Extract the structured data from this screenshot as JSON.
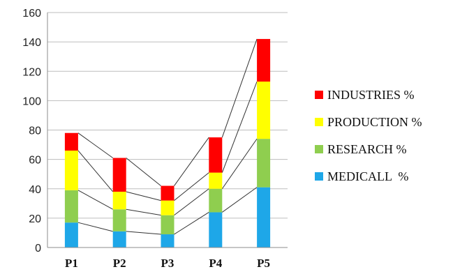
{
  "chart_data": {
    "type": "bar",
    "stacked": true,
    "series_lines": true,
    "categories": [
      "P1",
      "P2",
      "P3",
      "P4",
      "P5"
    ],
    "series": [
      {
        "name": "MEDICALL  %",
        "color": "#1ea7e8",
        "values": [
          17,
          11,
          9,
          24,
          41
        ]
      },
      {
        "name": "RESEARCH %",
        "color": "#8fce4f",
        "values": [
          22,
          15,
          13,
          16,
          33
        ]
      },
      {
        "name": "PRODUCTION %",
        "color": "#ffff00",
        "values": [
          27,
          12,
          10,
          11,
          39
        ]
      },
      {
        "name": "INDUSTRIES %",
        "color": "#ff0000",
        "values": [
          12,
          23,
          10,
          24,
          29
        ]
      }
    ],
    "ylim": [
      0,
      160
    ],
    "yticks": [
      0,
      20,
      40,
      60,
      80,
      100,
      120,
      140,
      160
    ],
    "grid": true,
    "legend_position": "right",
    "legend_order": [
      "INDUSTRIES %",
      "PRODUCTION %",
      "RESEARCH %",
      "MEDICALL  %"
    ]
  }
}
